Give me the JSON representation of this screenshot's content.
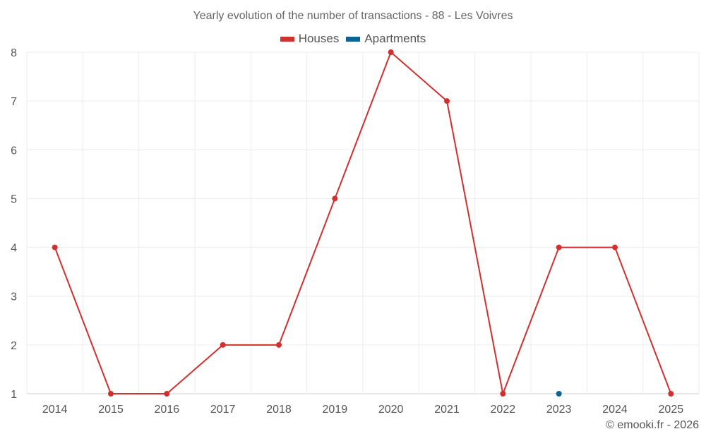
{
  "chart_data": {
    "type": "line",
    "title": "Yearly evolution of the number of transactions - 88 - Les Voivres",
    "categories": [
      "2014",
      "2015",
      "2016",
      "2017",
      "2018",
      "2019",
      "2020",
      "2021",
      "2022",
      "2023",
      "2024",
      "2025"
    ],
    "series": [
      {
        "name": "Houses",
        "color": "#d32f2f",
        "values": [
          4,
          1,
          1,
          2,
          2,
          5,
          8,
          7,
          1,
          4,
          4,
          1
        ]
      },
      {
        "name": "Apartments",
        "color": "#0b6494",
        "values": [
          null,
          null,
          null,
          null,
          null,
          null,
          null,
          null,
          null,
          1,
          null,
          null
        ]
      }
    ],
    "ylim": [
      1,
      8
    ],
    "yticks": [
      1,
      2,
      3,
      4,
      5,
      6,
      7,
      8
    ],
    "xlabel": "",
    "ylabel": "",
    "grid": true,
    "legend": "top-center"
  },
  "credit": "© emooki.fr - 2026"
}
